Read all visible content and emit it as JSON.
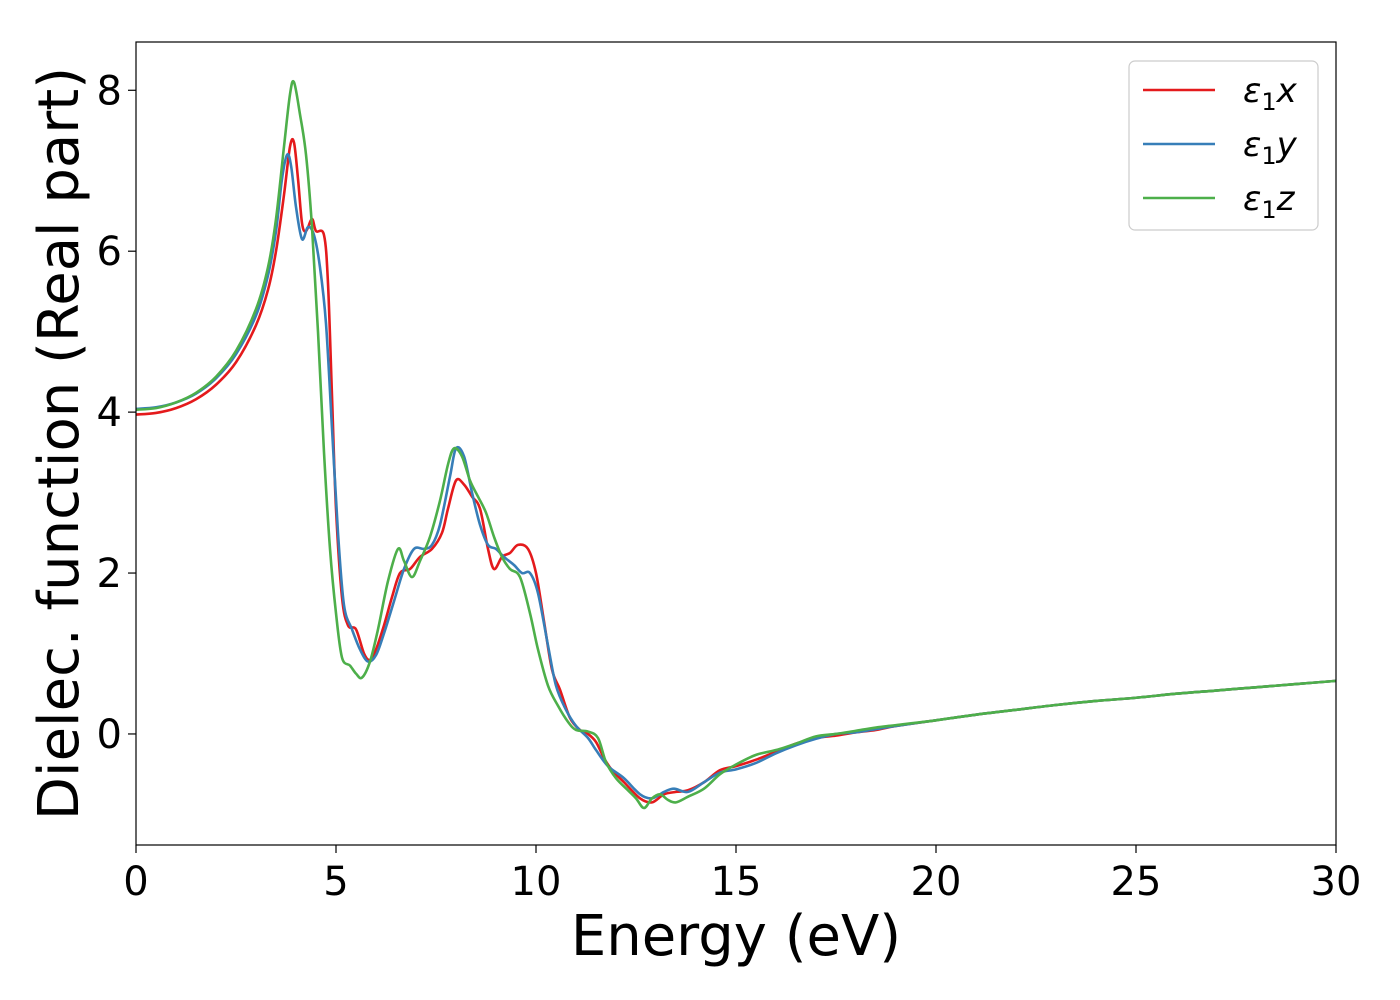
{
  "chart_data": {
    "type": "line",
    "xlabel": "Energy (eV)",
    "ylabel": "Dielec. function (Real part)",
    "xlim": [
      0,
      30
    ],
    "ylim": [
      -1.38,
      8.6
    ],
    "xticks": [
      0,
      5,
      10,
      15,
      20,
      25,
      30
    ],
    "yticks": [
      0,
      2,
      4,
      6,
      8
    ],
    "grid": false,
    "legend_position": "top-right",
    "series": [
      {
        "name": "ε1x",
        "legend": {
          "base": "ε",
          "sub": "1",
          "suffix": "x"
        },
        "color": "#e41a1c",
        "points": [
          [
            0,
            3.97
          ],
          [
            0.5,
            3.99
          ],
          [
            1.0,
            4.05
          ],
          [
            1.5,
            4.16
          ],
          [
            2.0,
            4.34
          ],
          [
            2.5,
            4.62
          ],
          [
            3.0,
            5.08
          ],
          [
            3.3,
            5.52
          ],
          [
            3.5,
            6.0
          ],
          [
            3.7,
            6.7
          ],
          [
            3.85,
            7.3
          ],
          [
            3.95,
            7.35
          ],
          [
            4.05,
            6.9
          ],
          [
            4.15,
            6.35
          ],
          [
            4.25,
            6.25
          ],
          [
            4.4,
            6.4
          ],
          [
            4.5,
            6.25
          ],
          [
            4.7,
            6.2
          ],
          [
            4.8,
            5.6
          ],
          [
            4.9,
            4.2
          ],
          [
            5.0,
            2.8
          ],
          [
            5.15,
            1.7
          ],
          [
            5.3,
            1.35
          ],
          [
            5.5,
            1.3
          ],
          [
            5.7,
            1.0
          ],
          [
            5.85,
            0.92
          ],
          [
            6.0,
            1.05
          ],
          [
            6.2,
            1.35
          ],
          [
            6.4,
            1.7
          ],
          [
            6.6,
            2.0
          ],
          [
            6.85,
            2.05
          ],
          [
            7.1,
            2.2
          ],
          [
            7.4,
            2.3
          ],
          [
            7.65,
            2.5
          ],
          [
            7.8,
            2.8
          ],
          [
            8.0,
            3.15
          ],
          [
            8.2,
            3.1
          ],
          [
            8.4,
            2.95
          ],
          [
            8.6,
            2.8
          ],
          [
            8.8,
            2.3
          ],
          [
            8.95,
            2.05
          ],
          [
            9.15,
            2.2
          ],
          [
            9.35,
            2.25
          ],
          [
            9.55,
            2.35
          ],
          [
            9.8,
            2.3
          ],
          [
            10.0,
            2.0
          ],
          [
            10.2,
            1.4
          ],
          [
            10.4,
            0.8
          ],
          [
            10.6,
            0.55
          ],
          [
            10.85,
            0.2
          ],
          [
            11.1,
            0.05
          ],
          [
            11.3,
            0.0
          ],
          [
            11.5,
            -0.1
          ],
          [
            11.7,
            -0.3
          ],
          [
            11.9,
            -0.45
          ],
          [
            12.2,
            -0.6
          ],
          [
            12.6,
            -0.8
          ],
          [
            12.9,
            -0.85
          ],
          [
            13.2,
            -0.75
          ],
          [
            13.5,
            -0.72
          ],
          [
            13.8,
            -0.7
          ],
          [
            14.2,
            -0.6
          ],
          [
            14.6,
            -0.45
          ],
          [
            15.0,
            -0.4
          ],
          [
            15.5,
            -0.32
          ],
          [
            16.0,
            -0.22
          ],
          [
            16.5,
            -0.12
          ],
          [
            17.0,
            -0.05
          ],
          [
            17.5,
            -0.02
          ],
          [
            18.0,
            0.02
          ],
          [
            18.5,
            0.05
          ],
          [
            19.0,
            0.1
          ],
          [
            20.0,
            0.17
          ],
          [
            21.0,
            0.24
          ],
          [
            22.0,
            0.3
          ],
          [
            23.0,
            0.36
          ],
          [
            24.0,
            0.41
          ],
          [
            25.0,
            0.45
          ],
          [
            26.0,
            0.5
          ],
          [
            27.0,
            0.54
          ],
          [
            28.0,
            0.58
          ],
          [
            29.0,
            0.62
          ],
          [
            30.0,
            0.66
          ]
        ]
      },
      {
        "name": "ε1y",
        "legend": {
          "base": "ε",
          "sub": "1",
          "suffix": "y"
        },
        "color": "#377eb8",
        "points": [
          [
            0,
            4.04
          ],
          [
            0.5,
            4.06
          ],
          [
            1.0,
            4.12
          ],
          [
            1.5,
            4.23
          ],
          [
            2.0,
            4.42
          ],
          [
            2.5,
            4.72
          ],
          [
            3.0,
            5.2
          ],
          [
            3.3,
            5.7
          ],
          [
            3.5,
            6.25
          ],
          [
            3.65,
            6.9
          ],
          [
            3.78,
            7.2
          ],
          [
            3.88,
            7.05
          ],
          [
            4.0,
            6.55
          ],
          [
            4.15,
            6.15
          ],
          [
            4.3,
            6.3
          ],
          [
            4.45,
            6.2
          ],
          [
            4.6,
            5.8
          ],
          [
            4.75,
            5.1
          ],
          [
            4.9,
            3.8
          ],
          [
            5.05,
            2.5
          ],
          [
            5.2,
            1.6
          ],
          [
            5.4,
            1.3
          ],
          [
            5.6,
            1.05
          ],
          [
            5.8,
            0.9
          ],
          [
            6.0,
            0.98
          ],
          [
            6.2,
            1.25
          ],
          [
            6.45,
            1.65
          ],
          [
            6.7,
            2.05
          ],
          [
            6.95,
            2.3
          ],
          [
            7.2,
            2.3
          ],
          [
            7.4,
            2.35
          ],
          [
            7.6,
            2.6
          ],
          [
            7.85,
            3.2
          ],
          [
            8.0,
            3.55
          ],
          [
            8.2,
            3.45
          ],
          [
            8.4,
            3.0
          ],
          [
            8.6,
            2.6
          ],
          [
            8.8,
            2.35
          ],
          [
            9.0,
            2.3
          ],
          [
            9.2,
            2.2
          ],
          [
            9.45,
            2.1
          ],
          [
            9.65,
            2.0
          ],
          [
            9.85,
            2.0
          ],
          [
            10.05,
            1.75
          ],
          [
            10.3,
            1.1
          ],
          [
            10.5,
            0.6
          ],
          [
            10.75,
            0.3
          ],
          [
            11.0,
            0.1
          ],
          [
            11.3,
            -0.05
          ],
          [
            11.5,
            -0.2
          ],
          [
            11.8,
            -0.4
          ],
          [
            12.2,
            -0.55
          ],
          [
            12.6,
            -0.75
          ],
          [
            12.9,
            -0.8
          ],
          [
            13.2,
            -0.72
          ],
          [
            13.45,
            -0.68
          ],
          [
            13.8,
            -0.72
          ],
          [
            14.2,
            -0.6
          ],
          [
            14.6,
            -0.48
          ],
          [
            15.0,
            -0.44
          ],
          [
            15.5,
            -0.36
          ],
          [
            16.0,
            -0.24
          ],
          [
            16.5,
            -0.14
          ],
          [
            17.0,
            -0.06
          ],
          [
            17.5,
            0.0
          ],
          [
            18.0,
            0.02
          ],
          [
            18.5,
            0.06
          ],
          [
            19.0,
            0.1
          ],
          [
            20.0,
            0.17
          ],
          [
            21.0,
            0.24
          ],
          [
            22.0,
            0.3
          ],
          [
            23.0,
            0.36
          ],
          [
            24.0,
            0.41
          ],
          [
            25.0,
            0.45
          ],
          [
            26.0,
            0.5
          ],
          [
            27.0,
            0.54
          ],
          [
            28.0,
            0.58
          ],
          [
            29.0,
            0.62
          ],
          [
            30.0,
            0.66
          ]
        ]
      },
      {
        "name": "ε1z",
        "legend": {
          "base": "ε",
          "sub": "1",
          "suffix": "z"
        },
        "color": "#4daf4a",
        "points": [
          [
            0,
            4.03
          ],
          [
            0.5,
            4.05
          ],
          [
            1.0,
            4.12
          ],
          [
            1.5,
            4.24
          ],
          [
            2.0,
            4.44
          ],
          [
            2.5,
            4.76
          ],
          [
            3.0,
            5.28
          ],
          [
            3.3,
            5.8
          ],
          [
            3.5,
            6.4
          ],
          [
            3.7,
            7.3
          ],
          [
            3.85,
            7.95
          ],
          [
            3.95,
            8.1
          ],
          [
            4.1,
            7.7
          ],
          [
            4.25,
            7.2
          ],
          [
            4.4,
            6.3
          ],
          [
            4.55,
            5.0
          ],
          [
            4.7,
            3.5
          ],
          [
            4.85,
            2.3
          ],
          [
            5.0,
            1.5
          ],
          [
            5.15,
            0.95
          ],
          [
            5.35,
            0.85
          ],
          [
            5.5,
            0.75
          ],
          [
            5.65,
            0.7
          ],
          [
            5.85,
            0.9
          ],
          [
            6.05,
            1.3
          ],
          [
            6.3,
            1.9
          ],
          [
            6.55,
            2.3
          ],
          [
            6.7,
            2.15
          ],
          [
            6.9,
            1.95
          ],
          [
            7.1,
            2.15
          ],
          [
            7.35,
            2.45
          ],
          [
            7.6,
            2.9
          ],
          [
            7.8,
            3.35
          ],
          [
            7.95,
            3.55
          ],
          [
            8.15,
            3.45
          ],
          [
            8.35,
            3.15
          ],
          [
            8.55,
            2.95
          ],
          [
            8.75,
            2.75
          ],
          [
            8.95,
            2.45
          ],
          [
            9.15,
            2.2
          ],
          [
            9.35,
            2.05
          ],
          [
            9.6,
            1.95
          ],
          [
            9.85,
            1.5
          ],
          [
            10.05,
            1.05
          ],
          [
            10.3,
            0.6
          ],
          [
            10.55,
            0.35
          ],
          [
            10.8,
            0.15
          ],
          [
            11.0,
            0.05
          ],
          [
            11.3,
            0.03
          ],
          [
            11.55,
            -0.05
          ],
          [
            11.75,
            -0.35
          ],
          [
            12.0,
            -0.55
          ],
          [
            12.3,
            -0.7
          ],
          [
            12.5,
            -0.8
          ],
          [
            12.7,
            -0.92
          ],
          [
            12.9,
            -0.8
          ],
          [
            13.1,
            -0.75
          ],
          [
            13.3,
            -0.82
          ],
          [
            13.5,
            -0.85
          ],
          [
            13.8,
            -0.78
          ],
          [
            14.2,
            -0.68
          ],
          [
            14.6,
            -0.5
          ],
          [
            15.0,
            -0.38
          ],
          [
            15.5,
            -0.26
          ],
          [
            16.0,
            -0.2
          ],
          [
            16.5,
            -0.12
          ],
          [
            17.0,
            -0.03
          ],
          [
            17.5,
            0.0
          ],
          [
            18.0,
            0.04
          ],
          [
            18.5,
            0.08
          ],
          [
            19.0,
            0.11
          ],
          [
            20.0,
            0.17
          ],
          [
            21.0,
            0.24
          ],
          [
            22.0,
            0.3
          ],
          [
            23.0,
            0.36
          ],
          [
            24.0,
            0.41
          ],
          [
            25.0,
            0.45
          ],
          [
            26.0,
            0.5
          ],
          [
            27.0,
            0.54
          ],
          [
            28.0,
            0.58
          ],
          [
            29.0,
            0.62
          ],
          [
            30.0,
            0.66
          ]
        ]
      }
    ]
  }
}
